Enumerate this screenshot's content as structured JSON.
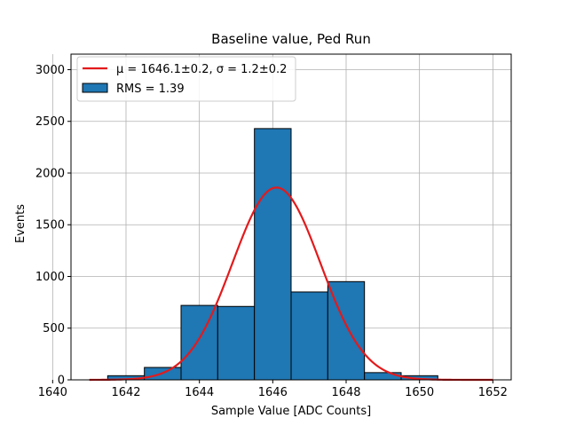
{
  "chart_data": {
    "type": "bar",
    "title": "Baseline value, Ped Run",
    "xlabel": "Sample Value [ADC Counts]",
    "ylabel": "Events",
    "xlim": [
      1640.5,
      1652.5
    ],
    "ylim": [
      0,
      3150
    ],
    "xticks": [
      1640,
      1642,
      1644,
      1646,
      1648,
      1650,
      1652
    ],
    "yticks": [
      0,
      500,
      1000,
      1500,
      2000,
      2500,
      3000
    ],
    "grid": true,
    "legend_position": "top-left",
    "bins": [
      {
        "x0": 1641.5,
        "x1": 1642.5,
        "value": 40
      },
      {
        "x0": 1642.5,
        "x1": 1643.5,
        "value": 120
      },
      {
        "x0": 1643.5,
        "x1": 1644.5,
        "value": 720
      },
      {
        "x0": 1644.5,
        "x1": 1645.5,
        "value": 710
      },
      {
        "x0": 1645.5,
        "x1": 1646.5,
        "value": 2430
      },
      {
        "x0": 1646.5,
        "x1": 1647.5,
        "value": 850
      },
      {
        "x0": 1647.5,
        "x1": 1648.5,
        "value": 950
      },
      {
        "x0": 1648.5,
        "x1": 1649.5,
        "value": 70
      },
      {
        "x0": 1649.5,
        "x1": 1650.5,
        "value": 40
      }
    ],
    "fit": {
      "mu": 1646.1,
      "sigma": 1.2,
      "amplitude": 1860,
      "x_range": [
        1641,
        1652
      ],
      "color": "#e31a1c"
    },
    "bar_color": "#1f77b4",
    "legend": [
      {
        "kind": "line",
        "label_main": "μ = 1646.1±0.2, σ = 1.2±0.2"
      },
      {
        "kind": "patch",
        "label": "RMS = 1.39"
      }
    ]
  }
}
